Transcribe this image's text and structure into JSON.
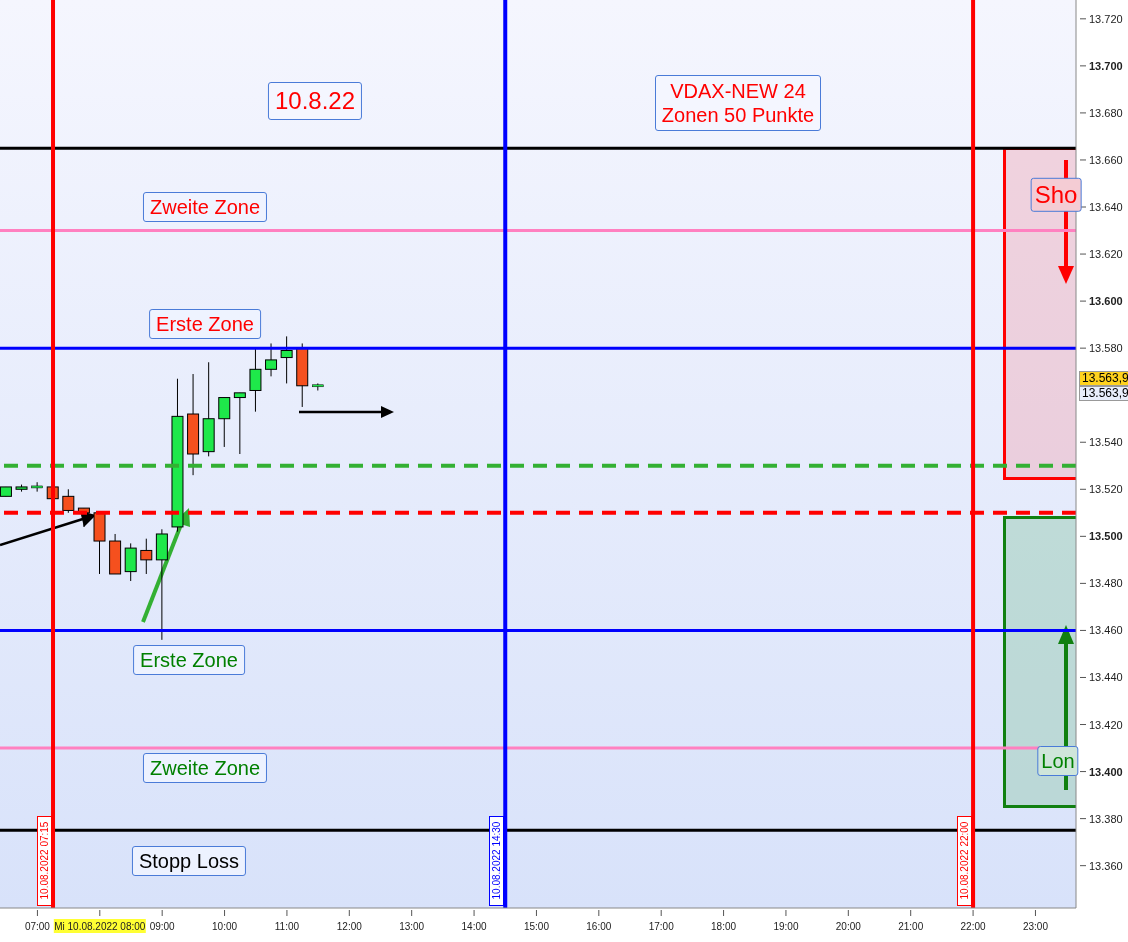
{
  "chart_data": {
    "type": "candlestick",
    "title": "10.8.22",
    "subtitle": "VDAX-NEW 24 Zonen 50 Punkte",
    "x": [
      6.5,
      6.75,
      7.0,
      7.25,
      7.5,
      7.75,
      8.0,
      8.25,
      8.5,
      8.75,
      9.0,
      9.25,
      9.5,
      9.75,
      10.0,
      10.25,
      10.5,
      10.75,
      11.0,
      11.25,
      11.5
    ],
    "ohlc": [
      [
        13517,
        13521,
        13517,
        13521
      ],
      [
        13520,
        13522,
        13519,
        13521
      ],
      [
        13521,
        13523,
        13519,
        13521
      ],
      [
        13521,
        13521,
        13516,
        13516
      ],
      [
        13517,
        13520,
        13510,
        13511
      ],
      [
        13512,
        13512,
        13504,
        13510
      ],
      [
        13510,
        13510,
        13484,
        13498
      ],
      [
        13498,
        13501,
        13484,
        13484
      ],
      [
        13485,
        13497,
        13481,
        13495
      ],
      [
        13494,
        13499,
        13484,
        13490
      ],
      [
        13490,
        13503,
        13456,
        13501
      ],
      [
        13504,
        13567,
        13502,
        13551
      ],
      [
        13552,
        13569,
        13526,
        13535
      ],
      [
        13536,
        13574,
        13534,
        13550
      ],
      [
        13550,
        13559,
        13538,
        13559
      ],
      [
        13559,
        13561,
        13535,
        13561
      ],
      [
        13562,
        13580,
        13553,
        13571
      ],
      [
        13571,
        13582,
        13568,
        13575
      ],
      [
        13576,
        13585,
        13565,
        13579
      ],
      [
        13580,
        13582,
        13555,
        13564
      ],
      [
        13564,
        13565,
        13562,
        13564
      ]
    ],
    "colors": [
      "#1ee84a",
      "#1ee84a",
      "#1ee84a",
      "#f5501e",
      "#f5501e",
      "#f5501e",
      "#f5501e",
      "#f5501e",
      "#1ee84a",
      "#f5501e",
      "#1ee84a",
      "#1ee84a",
      "#f5501e",
      "#1ee84a",
      "#1ee84a",
      "#1ee84a",
      "#1ee84a",
      "#1ee84a",
      "#1ee84a",
      "#f5501e",
      "#1ee84a"
    ],
    "xlim": [
      6.4,
      23.65
    ],
    "ylim": [
      13342,
      13728
    ],
    "xticks": [
      {
        "value": 7,
        "label": "07:00"
      },
      {
        "value": 8,
        "label": "Mi 10.08.2022 08:00"
      },
      {
        "value": 9,
        "label": "09:00"
      },
      {
        "value": 10,
        "label": "10:00"
      },
      {
        "value": 11,
        "label": "11:00"
      },
      {
        "value": 12,
        "label": "12:00"
      },
      {
        "value": 13,
        "label": "13:00"
      },
      {
        "value": 14,
        "label": "14:00"
      },
      {
        "value": 15,
        "label": "15:00"
      },
      {
        "value": 16,
        "label": "16:00"
      },
      {
        "value": 17,
        "label": "17:00"
      },
      {
        "value": 18,
        "label": "18:00"
      },
      {
        "value": 19,
        "label": "19:00"
      },
      {
        "value": 20,
        "label": "20:00"
      },
      {
        "value": 21,
        "label": "21:00"
      },
      {
        "value": 22,
        "label": "22:00"
      },
      {
        "value": 23,
        "label": "23:00"
      }
    ],
    "yticks": [
      {
        "value": 13360,
        "label": "13.360"
      },
      {
        "value": 13380,
        "label": "13.380"
      },
      {
        "value": 13400,
        "label": "13.400"
      },
      {
        "value": 13420,
        "label": "13.420"
      },
      {
        "value": 13440,
        "label": "13.440"
      },
      {
        "value": 13460,
        "label": "13.460"
      },
      {
        "value": 13480,
        "label": "13.480"
      },
      {
        "value": 13500,
        "label": "13.500"
      },
      {
        "value": 13520,
        "label": "13.520"
      },
      {
        "value": 13540,
        "label": "13.540"
      },
      {
        "value": 13580,
        "label": "13.580"
      },
      {
        "value": 13600,
        "label": "13.600"
      },
      {
        "value": 13620,
        "label": "13.620"
      },
      {
        "value": 13640,
        "label": "13.640"
      },
      {
        "value": 13660,
        "label": "13.660"
      },
      {
        "value": 13680,
        "label": "13.680"
      },
      {
        "value": 13700,
        "label": "13.700"
      },
      {
        "value": 13720,
        "label": "13.720"
      }
    ],
    "ref_lines": [
      {
        "axis": "y",
        "value": 13665,
        "color": "#000000",
        "line_style": "solid"
      },
      {
        "axis": "y",
        "value": 13630,
        "color": "#ff80c0",
        "line_style": "solid"
      },
      {
        "axis": "y",
        "value": 13580,
        "color": "#0000ff",
        "line_style": "solid"
      },
      {
        "axis": "y",
        "value": 13530,
        "color": "#33b033",
        "line_style": "dashed"
      },
      {
        "axis": "y",
        "value": 13510,
        "color": "#ff0000",
        "line_style": "dashed"
      },
      {
        "axis": "y",
        "value": 13460,
        "color": "#0000ff",
        "line_style": "solid"
      },
      {
        "axis": "y",
        "value": 13410,
        "color": "#ff80c0",
        "line_style": "solid"
      },
      {
        "axis": "y",
        "value": 13375,
        "color": "#000000",
        "line_style": "solid"
      },
      {
        "axis": "x",
        "value": 7.25,
        "label": "10.08.2022 07:15",
        "color": "#ff0000",
        "line_style": "solid"
      },
      {
        "axis": "x",
        "value": 14.5,
        "label": "10.08.2022 14:30",
        "color": "#0000ff",
        "line_style": "solid"
      },
      {
        "axis": "x",
        "value": 22,
        "label": "10.08.2022 22:00",
        "color": "#ff0000",
        "line_style": "solid"
      }
    ],
    "annotations": [
      "Zweite Zone",
      "Erste Zone",
      "Erste Zone",
      "Zweite Zone",
      "Stopp Loss",
      "Sho",
      "Lon",
      "13.563,9",
      "13.563,9"
    ]
  }
}
